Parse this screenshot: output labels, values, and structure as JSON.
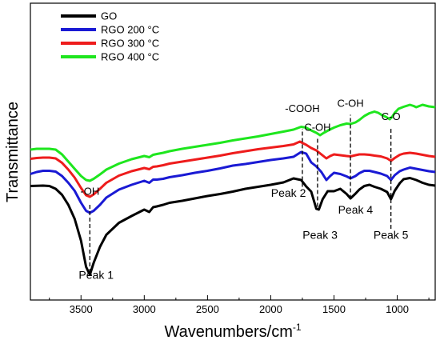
{
  "chart_data": {
    "type": "line",
    "title": "",
    "xlabel": "Wavenumbers/cm",
    "xlabel_superscript": "-1",
    "ylabel": "Transmittance",
    "xlim": [
      3900,
      700
    ],
    "x_reversed": true,
    "xticks": [
      3500,
      3000,
      2500,
      2000,
      1500,
      1000
    ],
    "y_axis_values_shown": false,
    "grid": false,
    "legend_position": "top-left",
    "series": [
      {
        "name": "GO",
        "color": "#000000",
        "offset": 0,
        "points": [
          [
            3900,
            -0.13
          ],
          [
            3800,
            -0.12
          ],
          [
            3750,
            -0.13
          ],
          [
            3700,
            -0.2
          ],
          [
            3650,
            -0.35
          ],
          [
            3600,
            -0.6
          ],
          [
            3550,
            -0.95
          ],
          [
            3500,
            -1.5
          ],
          [
            3460,
            -2.15
          ],
          [
            3430,
            -2.35
          ],
          [
            3400,
            -2.05
          ],
          [
            3350,
            -1.65
          ],
          [
            3300,
            -1.35
          ],
          [
            3200,
            -1.05
          ],
          [
            3100,
            -0.88
          ],
          [
            3000,
            -0.72
          ],
          [
            2960,
            -0.78
          ],
          [
            2930,
            -0.66
          ],
          [
            2900,
            -0.64
          ],
          [
            2850,
            -0.6
          ],
          [
            2800,
            -0.55
          ],
          [
            2700,
            -0.5
          ],
          [
            2600,
            -0.44
          ],
          [
            2500,
            -0.38
          ],
          [
            2400,
            -0.33
          ],
          [
            2300,
            -0.27
          ],
          [
            2200,
            -0.2
          ],
          [
            2100,
            -0.15
          ],
          [
            2000,
            -0.1
          ],
          [
            1900,
            -0.04
          ],
          [
            1820,
            0.06
          ],
          [
            1760,
            0.02
          ],
          [
            1720,
            -0.14
          ],
          [
            1680,
            -0.27
          ],
          [
            1640,
            -0.7
          ],
          [
            1620,
            -0.72
          ],
          [
            1590,
            -0.46
          ],
          [
            1550,
            -0.26
          ],
          [
            1500,
            -0.26
          ],
          [
            1450,
            -0.2
          ],
          [
            1400,
            -0.33
          ],
          [
            1370,
            -0.44
          ],
          [
            1330,
            -0.32
          ],
          [
            1300,
            -0.22
          ],
          [
            1260,
            -0.13
          ],
          [
            1220,
            -0.1
          ],
          [
            1180,
            -0.15
          ],
          [
            1130,
            -0.2
          ],
          [
            1080,
            -0.28
          ],
          [
            1050,
            -0.46
          ],
          [
            1020,
            -0.25
          ],
          [
            980,
            -0.06
          ],
          [
            950,
            0.04
          ],
          [
            900,
            0.07
          ],
          [
            850,
            0.02
          ],
          [
            800,
            -0.05
          ],
          [
            750,
            -0.1
          ],
          [
            700,
            -0.12
          ]
        ]
      },
      {
        "name": "RGO 200 °C",
        "color": "#1a1ad4",
        "offset": 0.3,
        "points": [
          [
            3900,
            -0.13
          ],
          [
            3850,
            -0.08
          ],
          [
            3800,
            -0.05
          ],
          [
            3750,
            -0.05
          ],
          [
            3700,
            -0.07
          ],
          [
            3650,
            -0.18
          ],
          [
            3600,
            -0.35
          ],
          [
            3550,
            -0.55
          ],
          [
            3500,
            -0.85
          ],
          [
            3460,
            -1.05
          ],
          [
            3430,
            -1.1
          ],
          [
            3400,
            -1.05
          ],
          [
            3350,
            -0.9
          ],
          [
            3300,
            -0.72
          ],
          [
            3200,
            -0.52
          ],
          [
            3100,
            -0.4
          ],
          [
            3000,
            -0.3
          ],
          [
            2960,
            -0.35
          ],
          [
            2930,
            -0.27
          ],
          [
            2900,
            -0.27
          ],
          [
            2850,
            -0.25
          ],
          [
            2800,
            -0.21
          ],
          [
            2700,
            -0.16
          ],
          [
            2600,
            -0.1
          ],
          [
            2500,
            -0.05
          ],
          [
            2400,
            0.01
          ],
          [
            2300,
            0.08
          ],
          [
            2200,
            0.12
          ],
          [
            2100,
            0.17
          ],
          [
            2000,
            0.22
          ],
          [
            1900,
            0.26
          ],
          [
            1820,
            0.3
          ],
          [
            1760,
            0.42
          ],
          [
            1720,
            0.38
          ],
          [
            1680,
            0.16
          ],
          [
            1640,
            0.06
          ],
          [
            1600,
            -0.08
          ],
          [
            1560,
            -0.28
          ],
          [
            1530,
            -0.18
          ],
          [
            1500,
            -0.1
          ],
          [
            1450,
            -0.13
          ],
          [
            1400,
            -0.19
          ],
          [
            1370,
            -0.24
          ],
          [
            1330,
            -0.18
          ],
          [
            1300,
            -0.11
          ],
          [
            1260,
            -0.05
          ],
          [
            1220,
            -0.05
          ],
          [
            1180,
            -0.08
          ],
          [
            1130,
            -0.12
          ],
          [
            1080,
            -0.18
          ],
          [
            1050,
            -0.28
          ],
          [
            1020,
            -0.16
          ],
          [
            980,
            -0.06
          ],
          [
            950,
            -0.02
          ],
          [
            900,
            0.03
          ],
          [
            850,
            0.0
          ],
          [
            800,
            -0.03
          ],
          [
            750,
            -0.06
          ],
          [
            700,
            -0.08
          ]
        ]
      },
      {
        "name": "RGO 300 °C",
        "color": "#ee1c1c",
        "offset": 0.6,
        "points": [
          [
            3900,
            -0.05
          ],
          [
            3850,
            -0.03
          ],
          [
            3800,
            -0.02
          ],
          [
            3750,
            -0.02
          ],
          [
            3700,
            -0.04
          ],
          [
            3650,
            -0.15
          ],
          [
            3600,
            -0.32
          ],
          [
            3550,
            -0.52
          ],
          [
            3500,
            -0.78
          ],
          [
            3460,
            -0.96
          ],
          [
            3430,
            -1.0
          ],
          [
            3400,
            -0.94
          ],
          [
            3350,
            -0.8
          ],
          [
            3300,
            -0.65
          ],
          [
            3200,
            -0.47
          ],
          [
            3100,
            -0.36
          ],
          [
            3000,
            -0.28
          ],
          [
            2960,
            -0.31
          ],
          [
            2930,
            -0.25
          ],
          [
            2900,
            -0.24
          ],
          [
            2850,
            -0.21
          ],
          [
            2800,
            -0.17
          ],
          [
            2700,
            -0.12
          ],
          [
            2600,
            -0.07
          ],
          [
            2500,
            -0.02
          ],
          [
            2400,
            0.03
          ],
          [
            2300,
            0.09
          ],
          [
            2200,
            0.14
          ],
          [
            2100,
            0.19
          ],
          [
            2000,
            0.23
          ],
          [
            1900,
            0.27
          ],
          [
            1820,
            0.31
          ],
          [
            1770,
            0.38
          ],
          [
            1720,
            0.3
          ],
          [
            1680,
            0.22
          ],
          [
            1640,
            0.16
          ],
          [
            1600,
            0.06
          ],
          [
            1560,
            -0.04
          ],
          [
            1530,
            0.02
          ],
          [
            1500,
            0.06
          ],
          [
            1450,
            0.04
          ],
          [
            1400,
            0.02
          ],
          [
            1370,
            0.01
          ],
          [
            1330,
            0.04
          ],
          [
            1300,
            0.06
          ],
          [
            1260,
            0.06
          ],
          [
            1220,
            0.05
          ],
          [
            1180,
            0.03
          ],
          [
            1130,
            0.01
          ],
          [
            1080,
            -0.04
          ],
          [
            1050,
            -0.1
          ],
          [
            1020,
            -0.03
          ],
          [
            980,
            0.05
          ],
          [
            950,
            0.08
          ],
          [
            900,
            0.1
          ],
          [
            850,
            0.08
          ],
          [
            800,
            0.05
          ],
          [
            750,
            0.02
          ],
          [
            700,
            0.0
          ]
        ]
      },
      {
        "name": "RGO 400 °C",
        "color": "#1ee61e",
        "offset": 0.9,
        "points": [
          [
            3900,
            -0.12
          ],
          [
            3850,
            -0.1
          ],
          [
            3800,
            -0.1
          ],
          [
            3750,
            -0.1
          ],
          [
            3700,
            -0.12
          ],
          [
            3650,
            -0.24
          ],
          [
            3600,
            -0.42
          ],
          [
            3550,
            -0.6
          ],
          [
            3500,
            -0.78
          ],
          [
            3460,
            -0.88
          ],
          [
            3430,
            -0.9
          ],
          [
            3400,
            -0.85
          ],
          [
            3350,
            -0.74
          ],
          [
            3300,
            -0.62
          ],
          [
            3200,
            -0.47
          ],
          [
            3100,
            -0.36
          ],
          [
            3000,
            -0.28
          ],
          [
            2960,
            -0.31
          ],
          [
            2930,
            -0.25
          ],
          [
            2900,
            -0.23
          ],
          [
            2850,
            -0.2
          ],
          [
            2800,
            -0.16
          ],
          [
            2700,
            -0.1
          ],
          [
            2600,
            -0.05
          ],
          [
            2500,
            0.0
          ],
          [
            2400,
            0.05
          ],
          [
            2300,
            0.11
          ],
          [
            2200,
            0.16
          ],
          [
            2100,
            0.21
          ],
          [
            2000,
            0.27
          ],
          [
            1900,
            0.33
          ],
          [
            1820,
            0.38
          ],
          [
            1760,
            0.45
          ],
          [
            1720,
            0.43
          ],
          [
            1680,
            0.36
          ],
          [
            1640,
            0.3
          ],
          [
            1610,
            0.24
          ],
          [
            1580,
            0.3
          ],
          [
            1540,
            0.37
          ],
          [
            1500,
            0.43
          ],
          [
            1450,
            0.49
          ],
          [
            1400,
            0.53
          ],
          [
            1370,
            0.52
          ],
          [
            1330,
            0.56
          ],
          [
            1300,
            0.62
          ],
          [
            1260,
            0.72
          ],
          [
            1220,
            0.79
          ],
          [
            1180,
            0.83
          ],
          [
            1150,
            0.8
          ],
          [
            1120,
            0.74
          ],
          [
            1090,
            0.7
          ],
          [
            1060,
            0.64
          ],
          [
            1040,
            0.7
          ],
          [
            1020,
            0.8
          ],
          [
            990,
            0.9
          ],
          [
            950,
            0.95
          ],
          [
            900,
            1.0
          ],
          [
            870,
            0.97
          ],
          [
            850,
            0.94
          ],
          [
            800,
            1.0
          ],
          [
            750,
            0.96
          ],
          [
            700,
            0.94
          ]
        ]
      }
    ],
    "annotations": {
      "band_labels": [
        {
          "text": "-OH",
          "x": 3430,
          "dash_from": -2.3,
          "dash_to": -0.55,
          "label_at": -0.35
        },
        {
          "text": "-COOH",
          "x": 1750,
          "dash_from": -0.15,
          "dash_to": 1.3,
          "label_at": 1.72
        },
        {
          "text": "C-OH",
          "x": 1630,
          "dash_from": -0.65,
          "dash_to": 1.05,
          "label_at": 1.25
        },
        {
          "text": "C-OH",
          "x": 1370,
          "dash_from": -0.45,
          "dash_to": 1.65,
          "label_at": 1.85
        },
        {
          "text": "C-O",
          "x": 1050,
          "dash_from": -1.2,
          "dash_to": 1.35,
          "label_at": 1.52
        }
      ],
      "peak_labels": [
        {
          "text": "Peak 1",
          "x": 3380,
          "y": -2.45
        },
        {
          "text": "Peak 2",
          "x": 1860,
          "y": -0.4
        },
        {
          "text": "Peak 3",
          "x": 1610,
          "y": -1.45
        },
        {
          "text": "Peak 4",
          "x": 1330,
          "y": -0.82
        },
        {
          "text": "Peak 5",
          "x": 1050,
          "y": -1.45
        }
      ]
    }
  }
}
